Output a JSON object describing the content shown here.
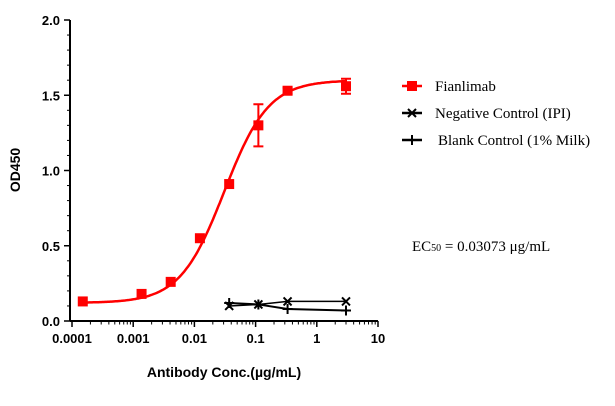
{
  "chart_data": {
    "type": "scatter",
    "xlabel": "Antibody Conc.(µg/mL)",
    "ylabel": "OD450",
    "xscale": "log",
    "xlim": [
      0.0001,
      10
    ],
    "ylim": [
      0,
      2.0
    ],
    "xticks": [
      "0.0001",
      "0.001",
      "0.01",
      "0.1",
      "1",
      "10"
    ],
    "yticks": [
      "0.0",
      "0.5",
      "1.0",
      "1.5",
      "2.0"
    ],
    "legend_position": "right",
    "annotation": {
      "prefix": "EC",
      "sub": "50",
      "rest": " = 0.03073 μg/mL"
    },
    "fit": {
      "model": "4PL",
      "bottom": 0.12,
      "top": 1.6,
      "ec50": 0.03073,
      "hill": 1.2
    },
    "series": [
      {
        "name": "Fianlimab",
        "color": "#ff0000",
        "marker": "square",
        "x": [
          0.00015,
          0.00137,
          0.0041,
          0.0123,
          0.037,
          0.111,
          0.333,
          3
        ],
        "y": [
          0.13,
          0.18,
          0.26,
          0.55,
          0.91,
          1.3,
          1.53,
          1.56
        ],
        "err": [
          0,
          0,
          0,
          0,
          0,
          0.14,
          0.02,
          0.05
        ]
      },
      {
        "name": "Negative Control (IPI)",
        "color": "#000000",
        "marker": "x",
        "x": [
          0.037,
          0.111,
          0.333,
          3
        ],
        "y": [
          0.1,
          0.11,
          0.13,
          0.13
        ]
      },
      {
        "name": "Blank Control (1% Milk)",
        "color": "#000000",
        "marker": "plus",
        "x": [
          0.037,
          0.111,
          0.333,
          3
        ],
        "y": [
          0.12,
          0.11,
          0.08,
          0.07
        ]
      }
    ]
  }
}
